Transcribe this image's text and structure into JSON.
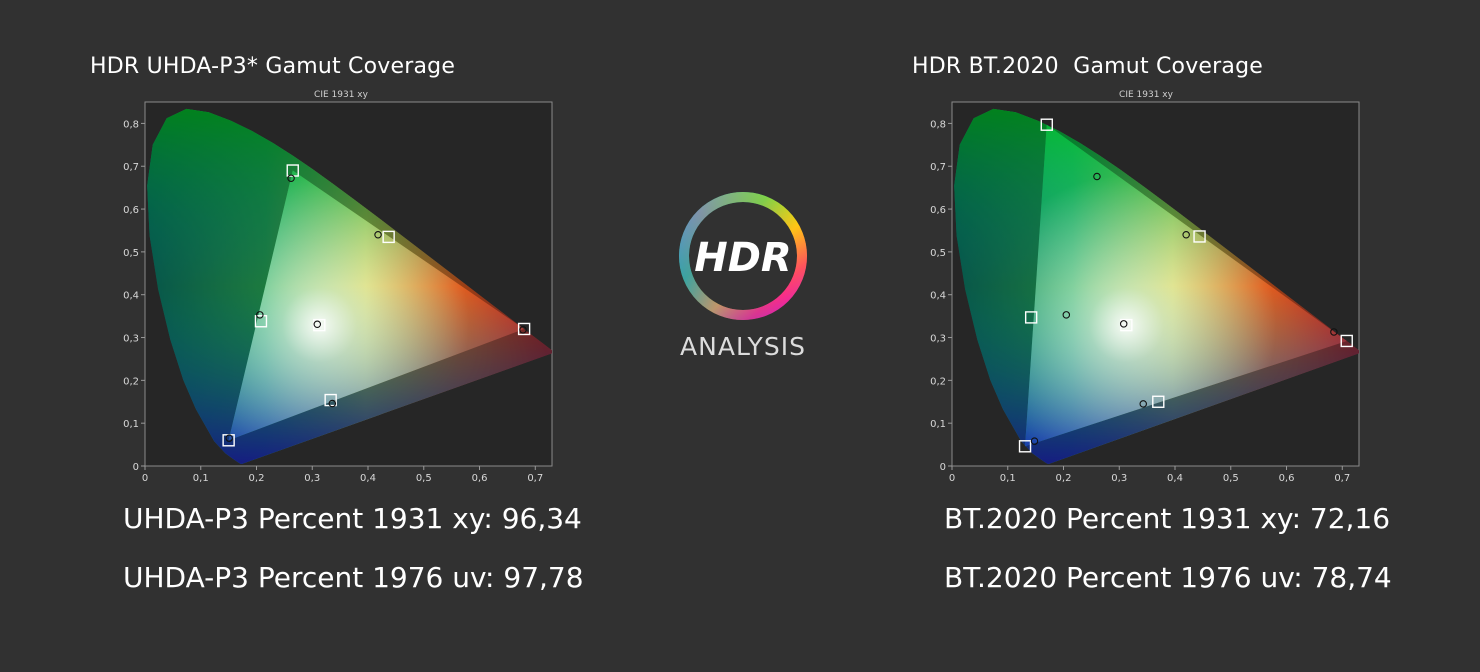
{
  "logo": {
    "word": "HDR",
    "subtitle": "ANALYSIS"
  },
  "chart_data": [
    {
      "type": "scatter",
      "title": "HDR UHDA-P3* Gamut Coverage",
      "subtitle": "CIE 1931 xy",
      "xlim": [
        0,
        0.73
      ],
      "ylim": [
        0,
        0.85
      ],
      "x_ticks": [
        "0",
        "0,1",
        "0,2",
        "0,3",
        "0,4",
        "0,5",
        "0,6",
        "0,7"
      ],
      "y_ticks": [
        "0",
        "0,1",
        "0,2",
        "0,3",
        "0,4",
        "0,5",
        "0,6",
        "0,7",
        "0,8"
      ],
      "grid": false,
      "series": [
        {
          "marker": "square",
          "points": [
            [
              0.68,
              0.32
            ],
            [
              0.265,
              0.69
            ],
            [
              0.15,
              0.06
            ],
            [
              0.3127,
              0.329
            ],
            [
              0.437,
              0.535
            ],
            [
              0.208,
              0.338
            ],
            [
              0.333,
              0.154
            ]
          ]
        },
        {
          "marker": "circle",
          "points": [
            [
              0.678,
              0.318
            ],
            [
              0.262,
              0.672
            ],
            [
              0.151,
              0.065
            ],
            [
              0.309,
              0.331
            ],
            [
              0.418,
              0.54
            ],
            [
              0.206,
              0.353
            ],
            [
              0.336,
              0.146
            ]
          ]
        }
      ],
      "stats": [
        "UHDA-P3 Percent 1931 xy: 96,34",
        "UHDA-P3 Percent 1976 uv: 97,78"
      ]
    },
    {
      "type": "scatter",
      "title": "HDR BT.2020  Gamut Coverage",
      "subtitle": "CIE 1931 xy",
      "xlim": [
        0,
        0.73
      ],
      "ylim": [
        0,
        0.85
      ],
      "x_ticks": [
        "0",
        "0,1",
        "0,2",
        "0,3",
        "0,4",
        "0,5",
        "0,6",
        "0,7"
      ],
      "y_ticks": [
        "0",
        "0,1",
        "0,2",
        "0,3",
        "0,4",
        "0,5",
        "0,6",
        "0,7",
        "0,8"
      ],
      "grid": false,
      "series": [
        {
          "marker": "square",
          "points": [
            [
              0.708,
              0.292
            ],
            [
              0.17,
              0.797
            ],
            [
              0.131,
              0.046
            ],
            [
              0.3127,
              0.329
            ],
            [
              0.444,
              0.536
            ],
            [
              0.142,
              0.347
            ],
            [
              0.37,
              0.15
            ]
          ]
        },
        {
          "marker": "circle",
          "points": [
            [
              0.685,
              0.313
            ],
            [
              0.26,
              0.676
            ],
            [
              0.148,
              0.058
            ],
            [
              0.308,
              0.332
            ],
            [
              0.42,
              0.54
            ],
            [
              0.205,
              0.353
            ],
            [
              0.343,
              0.145
            ]
          ]
        }
      ],
      "stats": [
        "BT.2020 Percent 1931 xy: 72,16",
        "BT.2020 Percent 1976 uv: 78,74"
      ]
    }
  ]
}
